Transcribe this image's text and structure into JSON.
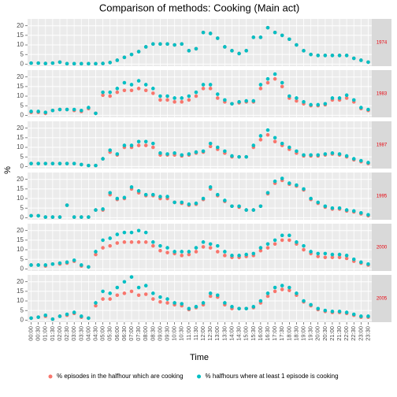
{
  "chart_data": {
    "type": "scatter",
    "title": "Comparison of methods: Cooking (Main act)",
    "x_label": "Time",
    "y_label": "%",
    "grid": true,
    "legend": "bottom",
    "categories": [
      "00:00",
      "00:30",
      "01:00",
      "01:30",
      "02:00",
      "02:30",
      "03:00",
      "03:30",
      "04:00",
      "04:30",
      "05:00",
      "05:30",
      "06:00",
      "06:30",
      "07:00",
      "07:30",
      "08:00",
      "08:30",
      "09:00",
      "09:30",
      "10:00",
      "10:30",
      "11:00",
      "11:30",
      "12:00",
      "12:30",
      "13:00",
      "13:30",
      "14:00",
      "14:30",
      "15:00",
      "15:30",
      "16:00",
      "16:30",
      "17:00",
      "17:30",
      "18:00",
      "18:30",
      "19:00",
      "19:30",
      "20:00",
      "20:30",
      "21:00",
      "21:30",
      "22:00",
      "22:30",
      "23:00",
      "23:30"
    ],
    "ylim": [
      -1.1,
      23.6
    ],
    "yticks": [
      0,
      5,
      10,
      15,
      20
    ],
    "series": [
      {
        "name": "% episodes in the halfhour which are cooking",
        "color": "#F8766D"
      },
      {
        "name": "% halfhours where at least 1 episode is cooking",
        "color": "#00BFC4"
      }
    ],
    "facets": [
      {
        "label": "1974",
        "values": [
          [
            0.5,
            0.5,
            0.3,
            0.5,
            1,
            0.2,
            0.2,
            0.2,
            0.2,
            0.2,
            0.3,
            0.8,
            2,
            3.5,
            5,
            6.5,
            9,
            10.5,
            10.5,
            10.5,
            10,
            10.5,
            7,
            8,
            16.5,
            16,
            13.5,
            9,
            7,
            5.5,
            7,
            14,
            14,
            19,
            16.5,
            15,
            13,
            10,
            7,
            5,
            4.5,
            4.5,
            4.5,
            4.5,
            4.5,
            3,
            2,
            1
          ],
          [
            0.5,
            0.5,
            0.3,
            0.5,
            1,
            0.2,
            0.2,
            0.2,
            0.2,
            0.2,
            0.3,
            0.8,
            2,
            3.5,
            5,
            6.5,
            9,
            10.5,
            10.5,
            10.5,
            10,
            10.5,
            7,
            8,
            16.5,
            16,
            13.5,
            9,
            7,
            5.5,
            7,
            14,
            14,
            19,
            16.5,
            15,
            13,
            10,
            7,
            5,
            4.5,
            4.5,
            4.5,
            4.5,
            4.5,
            3,
            2,
            1
          ]
        ]
      },
      {
        "label": "1983",
        "values": [
          [
            1.5,
            1.5,
            1,
            2.5,
            3,
            3,
            2.5,
            2,
            3.5,
            1,
            10.5,
            10,
            12,
            13,
            13,
            14,
            13,
            11.5,
            8,
            8,
            7,
            7,
            8,
            10,
            14,
            14,
            9,
            7,
            6,
            6.5,
            7,
            7,
            14,
            17,
            19,
            15,
            9,
            7.5,
            6,
            5,
            5,
            5.5,
            8,
            8,
            9,
            7,
            3.5,
            2.5
          ],
          [
            2,
            2,
            1.5,
            2.5,
            3,
            3,
            3,
            2.5,
            4,
            1,
            12,
            12,
            14,
            17,
            16,
            18,
            16,
            14,
            10,
            10,
            9,
            9,
            10,
            12,
            16,
            16,
            11,
            8,
            6,
            7,
            7.5,
            7.5,
            16,
            19,
            21.5,
            17,
            10,
            9,
            7,
            5.5,
            5.5,
            6,
            9,
            9,
            10.5,
            8,
            4,
            3
          ]
        ]
      },
      {
        "label": "1987",
        "values": [
          [
            1.5,
            1.5,
            1.5,
            1.5,
            1.5,
            1.5,
            1.5,
            1,
            0.5,
            0.5,
            4,
            7.5,
            6,
            10,
            10,
            11,
            11,
            10,
            6,
            6,
            6,
            5.5,
            6,
            7,
            7.5,
            10.5,
            9,
            7,
            5,
            5,
            5,
            10,
            14,
            16.5,
            13,
            11,
            9,
            7,
            5.5,
            5.5,
            5.5,
            6,
            6.5,
            6,
            5,
            3.5,
            2.5,
            1.5
          ],
          [
            1.5,
            1.5,
            1.5,
            1.5,
            1.5,
            1.5,
            1.5,
            1,
            0.5,
            0.5,
            4,
            8.5,
            6.5,
            11,
            11,
            13,
            13,
            12,
            7,
            6.5,
            7,
            6,
            6.5,
            7.5,
            8,
            12,
            10,
            8,
            5.5,
            5,
            5,
            11,
            16,
            19,
            15,
            12,
            10,
            8,
            6,
            6,
            6,
            6.5,
            7,
            6.5,
            5.5,
            4,
            3,
            2
          ]
        ]
      },
      {
        "label": "1995",
        "values": [
          [
            1,
            1,
            0.3,
            0.3,
            0.3,
            6.5,
            0.3,
            0.3,
            0.3,
            4,
            4,
            12,
            9.5,
            10,
            15,
            13,
            11.5,
            11.5,
            10,
            10,
            8,
            7.5,
            6.5,
            7,
            9.5,
            15,
            11.5,
            8.5,
            6,
            5.5,
            4,
            4,
            6,
            12.5,
            18,
            19.5,
            17.5,
            16.5,
            14.5,
            9.5,
            7.5,
            5.5,
            4.5,
            4.5,
            3.5,
            3,
            2,
            1
          ],
          [
            1,
            1,
            0.3,
            0.3,
            0.3,
            6.5,
            0.3,
            0.3,
            0.3,
            4,
            4.5,
            13,
            10,
            10.5,
            16,
            14,
            12,
            12,
            11,
            11,
            8,
            8,
            7,
            7.5,
            10,
            16,
            12,
            9,
            6,
            6,
            4,
            4,
            6,
            13,
            19,
            20.5,
            18,
            17,
            15,
            10,
            8,
            6,
            5,
            5,
            4,
            3.5,
            2.5,
            1.5
          ]
        ]
      },
      {
        "label": "2000",
        "values": [
          [
            2,
            2,
            1.5,
            2.5,
            2.5,
            3,
            4,
            1.5,
            1,
            7.5,
            11,
            12,
            13.5,
            14,
            14,
            14,
            14,
            12,
            9.5,
            8.5,
            8,
            7,
            7.5,
            9,
            11.5,
            11,
            9,
            7,
            6,
            6,
            6.5,
            7,
            9.5,
            11,
            13,
            15,
            15,
            13,
            10,
            8,
            6.5,
            6,
            6,
            6,
            5.5,
            4,
            3,
            2
          ],
          [
            2,
            2,
            2,
            2.5,
            3,
            3.5,
            4.5,
            2,
            1,
            9,
            15,
            16,
            18,
            19,
            19,
            20,
            19,
            14,
            12,
            11,
            9,
            9,
            9,
            11,
            14,
            13,
            12,
            9,
            7,
            7,
            7.5,
            8,
            11,
            13,
            15,
            17.5,
            17.5,
            14,
            12,
            9,
            8,
            8,
            7.5,
            7.5,
            7,
            5,
            3.5,
            2.5
          ]
        ]
      },
      {
        "label": "2005",
        "values": [
          [
            1,
            1.5,
            2,
            0.5,
            2,
            2.5,
            3.5,
            1.5,
            1,
            7.5,
            11,
            11,
            13,
            14,
            15,
            13,
            13.5,
            11,
            9.5,
            9,
            8,
            7.5,
            5.5,
            6.5,
            8,
            12.5,
            12,
            8,
            6,
            6,
            6,
            6.5,
            9,
            12.5,
            15,
            16,
            15.5,
            13,
            9.5,
            7.5,
            5.5,
            4.5,
            4,
            4,
            3.5,
            2.5,
            1.5,
            1.5
          ],
          [
            1,
            1.5,
            2.5,
            0.5,
            2,
            3,
            4,
            2,
            1,
            9,
            15,
            14,
            17,
            20,
            22.5,
            17,
            18,
            14,
            12,
            11,
            9,
            8.5,
            6,
            7,
            9,
            14,
            13,
            9,
            7,
            6,
            6,
            7,
            10,
            14,
            17,
            18,
            17,
            14,
            10,
            8,
            6,
            5,
            4.5,
            4.5,
            4,
            3,
            2,
            2
          ]
        ]
      }
    ]
  }
}
